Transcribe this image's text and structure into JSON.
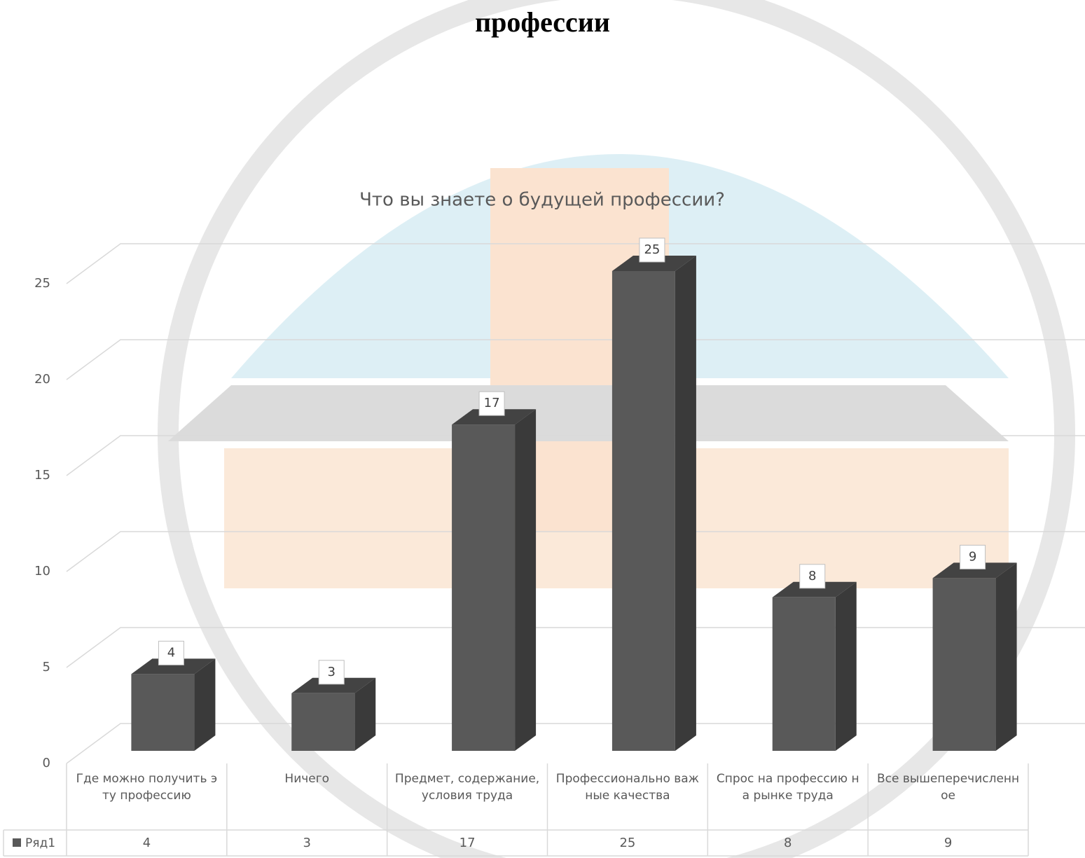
{
  "header": {
    "title": "профессии"
  },
  "chart_data": {
    "type": "bar3d",
    "title": "Что вы знаете о будущей профессии?",
    "categories": [
      "Где можно получить эту профессию",
      "Ничего",
      "Предмет, содержание, условия труда",
      "Профессионально важные качества",
      "Спрос на профессию на рынке труда",
      "Все вышеперечисленное"
    ],
    "series": [
      {
        "name": "Ряд1",
        "color": "#595959",
        "values": [
          4,
          3,
          17,
          25,
          8,
          9
        ]
      }
    ],
    "ylim": [
      0,
      25
    ],
    "yticks": [
      0,
      5,
      10,
      15,
      20,
      25
    ],
    "grid": true,
    "data_table": true
  }
}
